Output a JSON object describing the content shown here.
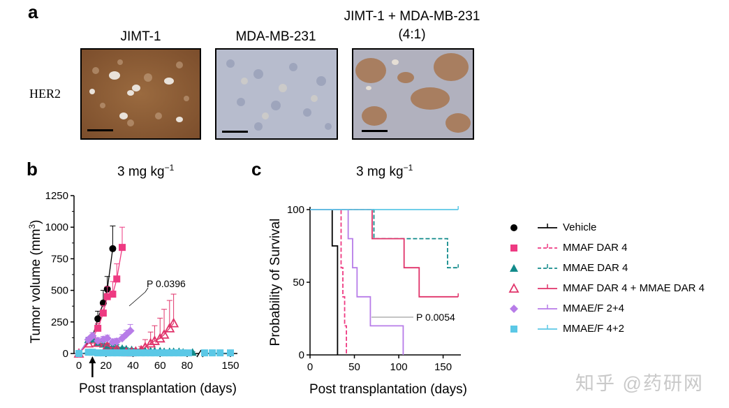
{
  "panels": {
    "a": {
      "letter": "a",
      "columns": [
        "JIMT-1",
        "MDA-MB-231",
        "JIMT-1 + MDA-MB-231",
        "(4:1)"
      ],
      "row_label": "HER2",
      "stain_levels": {
        "jimt1": "strong",
        "mdamb231": "negative",
        "mix": "mixed"
      },
      "colors": {
        "brown": "#8a5a33",
        "blue_gray": "#a3a9bf",
        "background": "#ece7e1"
      }
    },
    "b": {
      "letter": "b",
      "title": "3 mg kg",
      "title_sup": "−1"
    },
    "c": {
      "letter": "c",
      "title": "3 mg kg",
      "title_sup": "−1"
    }
  },
  "legend": [
    {
      "label": "Vehicle",
      "color": "#000000",
      "marker": "circle-filled",
      "dash": "solid"
    },
    {
      "label": "MMAF DAR 4",
      "color": "#ee3a82",
      "marker": "square-filled",
      "dash": "dashed"
    },
    {
      "label": "MMAE DAR 4",
      "color": "#128b8b",
      "marker": "triangle-filled",
      "dash": "dashed"
    },
    {
      "label": "MMAF DAR 4 + MMAE DAR 4",
      "color": "#e0336a",
      "marker": "triangle-open",
      "dash": "solid"
    },
    {
      "label": "MMAE/F 2+4",
      "color": "#b77ce8",
      "marker": "diamond-filled",
      "dash": "solid"
    },
    {
      "label": "MMAE/F 4+2",
      "color": "#5bc8e6",
      "marker": "square-filled",
      "dash": "solid"
    }
  ],
  "watermark": "知乎 @药研网",
  "chart_data": [
    {
      "panel": "b",
      "type": "line",
      "xlabel": "Post transplantation (days)",
      "ylabel": "Tumor volume (mm",
      "ylabel_sup": "3",
      "ylabel_end": ")",
      "xlim": [
        0,
        150
      ],
      "ylim": [
        0,
        1250
      ],
      "xticks": [
        0,
        20,
        40,
        60,
        80,
        150
      ],
      "yticks": [
        0,
        250,
        500,
        750,
        1000,
        1250
      ],
      "axis_break": "between 80 and 150",
      "dosing_arrow_day": 10,
      "annotation": "P 0.0396",
      "series": [
        {
          "name": "Vehicle",
          "x": [
            0,
            10,
            14,
            18,
            21,
            25
          ],
          "y": [
            0,
            130,
            275,
            400,
            510,
            830
          ],
          "err": [
            0,
            20,
            60,
            100,
            100,
            180
          ],
          "legend_index": 0
        },
        {
          "name": "MMAF DAR 4",
          "x": [
            0,
            10,
            14,
            18,
            21,
            25,
            28,
            32
          ],
          "y": [
            0,
            120,
            200,
            320,
            450,
            470,
            590,
            840
          ],
          "err": [
            0,
            20,
            40,
            60,
            80,
            100,
            120,
            160
          ],
          "legend_index": 1
        },
        {
          "name": "MMAE DAR 4",
          "x": [
            0,
            7,
            10,
            14,
            18,
            21,
            25,
            28,
            32,
            35,
            39,
            42,
            46,
            49,
            53,
            56,
            60,
            63,
            67,
            70,
            74,
            77,
            84
          ],
          "y": [
            0,
            110,
            115,
            85,
            75,
            60,
            55,
            55,
            40,
            35,
            30,
            25,
            25,
            20,
            20,
            20,
            20,
            15,
            15,
            15,
            15,
            10,
            10
          ],
          "err": [
            0,
            15,
            15,
            15,
            15,
            15,
            15,
            15,
            10,
            10,
            10,
            10,
            10,
            8,
            8,
            8,
            8,
            6,
            6,
            6,
            6,
            5,
            5
          ],
          "legend_index": 2
        },
        {
          "name": "MMAF DAR 4 + MMAE DAR 4",
          "x": [
            0,
            7,
            14,
            21,
            28,
            35,
            39,
            42,
            46,
            49,
            53,
            56,
            60,
            63,
            67,
            70
          ],
          "y": [
            0,
            80,
            85,
            60,
            35,
            10,
            10,
            15,
            25,
            50,
            80,
            100,
            120,
            150,
            200,
            240
          ],
          "err": [
            0,
            20,
            20,
            20,
            15,
            10,
            10,
            15,
            30,
            60,
            90,
            120,
            160,
            200,
            220,
            230
          ],
          "legend_index": 3
        },
        {
          "name": "MMAE/F 2+4",
          "x": [
            0,
            7,
            10,
            14,
            18,
            21,
            25,
            28,
            32,
            35,
            38
          ],
          "y": [
            0,
            110,
            140,
            100,
            110,
            120,
            90,
            95,
            120,
            150,
            180
          ],
          "err": [
            0,
            20,
            25,
            25,
            25,
            25,
            25,
            25,
            30,
            35,
            50
          ],
          "legend_index": 4
        },
        {
          "name": "MMAE/F 4+2",
          "x": [
            0,
            7,
            10,
            14,
            18,
            21,
            25,
            28,
            32,
            35,
            39,
            42,
            46,
            49,
            53,
            56,
            60,
            63,
            67,
            70,
            74,
            77,
            81,
            140,
            143,
            146,
            150
          ],
          "y": [
            0,
            10,
            10,
            5,
            5,
            5,
            5,
            5,
            5,
            5,
            5,
            5,
            5,
            5,
            5,
            5,
            5,
            5,
            5,
            5,
            5,
            5,
            5,
            5,
            5,
            5,
            5
          ],
          "err": [],
          "legend_index": 5
        }
      ]
    },
    {
      "panel": "c",
      "type": "line",
      "subtype": "step",
      "xlabel": "Post transplantation (days)",
      "ylabel": "Probability of Survival",
      "xlim": [
        0,
        170
      ],
      "ylim": [
        0,
        100
      ],
      "xticks": [
        0,
        50,
        100,
        150
      ],
      "yticks": [
        0,
        50,
        100
      ],
      "annotation": "P 0.0054",
      "series": [
        {
          "name": "Vehicle",
          "x": [
            0,
            25,
            25,
            31,
            31
          ],
          "y": [
            100,
            100,
            75,
            75,
            0
          ],
          "legend_index": 0
        },
        {
          "name": "MMAF DAR 4",
          "x": [
            0,
            35,
            35,
            37,
            37,
            39,
            39,
            41,
            41
          ],
          "y": [
            100,
            100,
            60,
            60,
            40,
            40,
            20,
            20,
            0
          ],
          "legend_index": 1
        },
        {
          "name": "MMAE DAR 4",
          "x": [
            0,
            72,
            72,
            155,
            155,
            167
          ],
          "y": [
            100,
            100,
            80,
            80,
            60,
            60
          ],
          "legend_index": 2
        },
        {
          "name": "MMAF DAR 4 + MMAE DAR 4",
          "x": [
            0,
            70,
            70,
            106,
            106,
            123,
            123,
            167
          ],
          "y": [
            100,
            100,
            80,
            80,
            60,
            60,
            40,
            40
          ],
          "legend_index": 3
        },
        {
          "name": "MMAE/F 2+4",
          "x": [
            0,
            43,
            43,
            48,
            48,
            53,
            53,
            68,
            68,
            105,
            105
          ],
          "y": [
            100,
            100,
            80,
            80,
            60,
            60,
            40,
            40,
            20,
            20,
            0
          ],
          "legend_index": 4
        },
        {
          "name": "MMAE/F 4+2",
          "x": [
            0,
            167
          ],
          "y": [
            100,
            100
          ],
          "legend_index": 5
        }
      ]
    }
  ]
}
